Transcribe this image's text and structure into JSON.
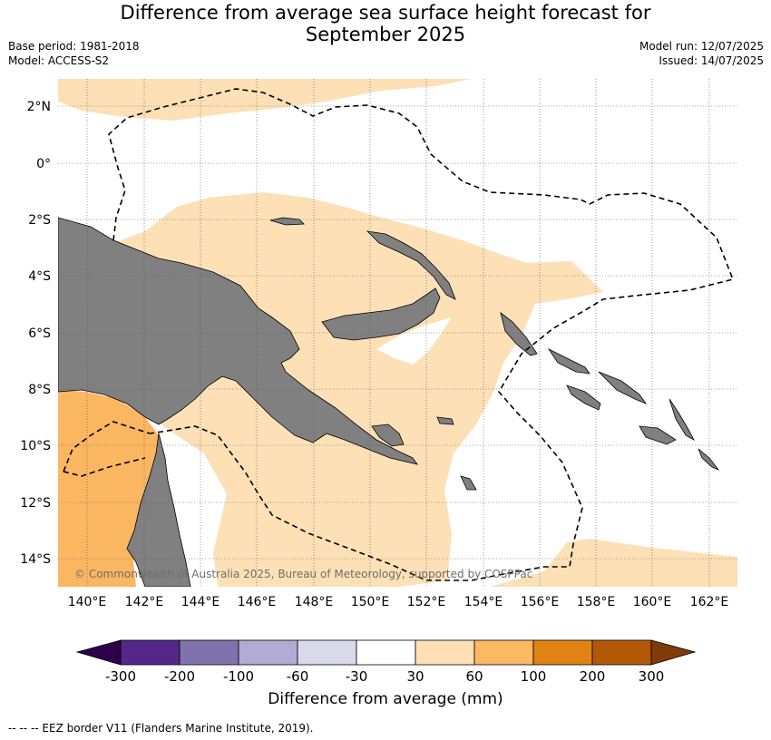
{
  "header": {
    "title_line1": "Difference from average sea surface height forecast for",
    "title_line2": "September 2025",
    "base_period": "Base period: 1981-2018",
    "model": "Model: ACCESS-S2",
    "model_run": "Model run: 12/07/2025",
    "issued": "Issued: 14/07/2025"
  },
  "map": {
    "lat_labels": [
      "2°N",
      "0°",
      "2°S",
      "4°S",
      "6°S",
      "8°S",
      "10°S",
      "12°S",
      "14°S"
    ],
    "lon_labels": [
      "140°E",
      "142°E",
      "144°E",
      "146°E",
      "148°E",
      "150°E",
      "152°E",
      "154°E",
      "156°E",
      "158°E",
      "160°E",
      "162°E"
    ],
    "copyright": "© Commonwealth of Australia 2025, Bureau of Meteorology, supported by COSPPac",
    "colors": {
      "land": "#808080",
      "band_30_60": "#fde0b6",
      "band_60_100": "#fbb662",
      "eez_line": "#000000"
    }
  },
  "colorbar": {
    "ticks": [
      "-300",
      "-200",
      "-100",
      "-60",
      "-30",
      "30",
      "60",
      "100",
      "200",
      "300"
    ],
    "colors": [
      "#2d004b",
      "#542788",
      "#8073ac",
      "#b2abd2",
      "#d8daeb",
      "#ffffff",
      "#fee0b6",
      "#fdb863",
      "#e08214",
      "#b35806",
      "#7f3b08"
    ],
    "label": "Difference from average (mm)"
  },
  "footer": {
    "legend_text": "--  --  -- EEZ border V11 (Flanders Marine Institute, 2019)."
  }
}
